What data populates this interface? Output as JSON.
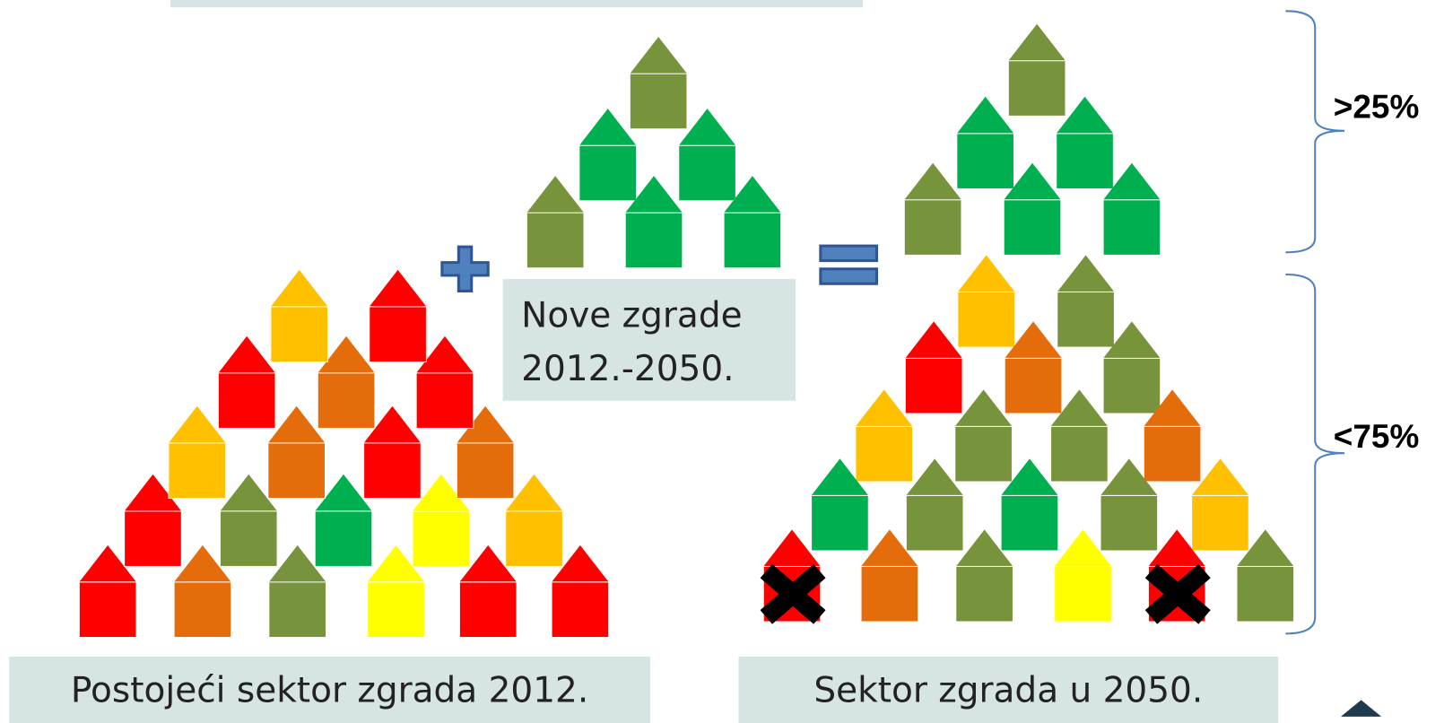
{
  "labels": {
    "top_share": ">25%",
    "bottom_share": "<75%",
    "new_line1": "Nove zgrade",
    "new_line2": "2012.-2050.",
    "existing": "Postojeći sektor zgrada  2012.",
    "future": "Sektor zgrada  u 2050."
  }
}
